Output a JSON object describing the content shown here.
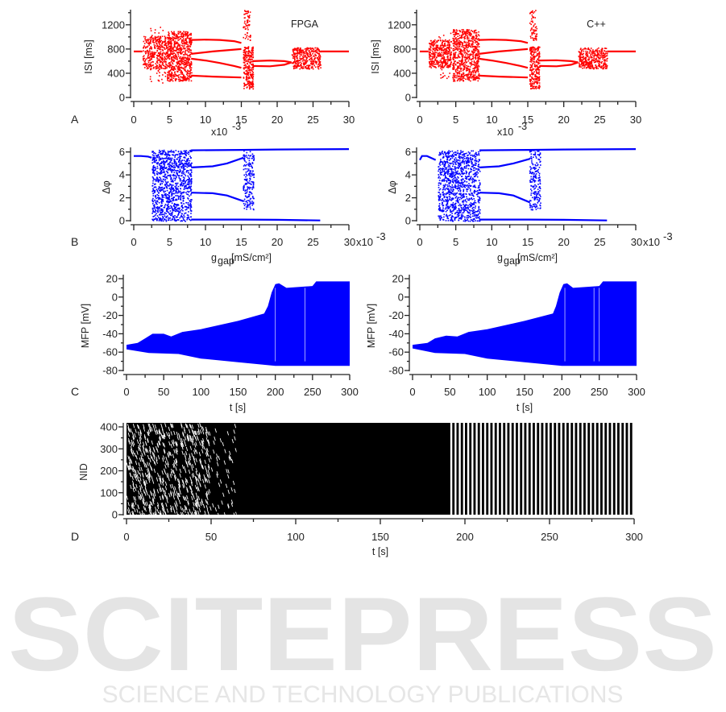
{
  "watermark": {
    "line1": "SCITEPRESS",
    "line2": "SCIENCE AND TECHNOLOGY PUBLICATIONS"
  },
  "chart_data": [
    {
      "id": "A-fpga",
      "panel": "A",
      "type": "scatter",
      "title": "FPGA",
      "color": "#ff0000",
      "ylabel": "ISI [ms]",
      "xlabel_base": "x10",
      "xlabel_exp": "-3",
      "xlim": [
        0,
        30
      ],
      "ylim": [
        0,
        1450
      ],
      "xticks": [
        0,
        5,
        10,
        15,
        20,
        25,
        30
      ],
      "yticks": [
        0,
        400,
        800,
        1200
      ],
      "branches": [
        {
          "x": [
            0,
            1.2
          ],
          "y": [
            760,
            760
          ]
        },
        {
          "x": [
            8,
            10,
            12,
            14,
            15
          ],
          "y": [
            950,
            955,
            950,
            930,
            900
          ]
        },
        {
          "x": [
            8,
            11,
            15
          ],
          "y": [
            720,
            760,
            800
          ]
        },
        {
          "x": [
            8,
            10,
            12,
            14,
            15
          ],
          "y": [
            640,
            610,
            570,
            520,
            490
          ]
        },
        {
          "x": [
            8,
            11,
            15
          ],
          "y": [
            360,
            345,
            330
          ]
        },
        {
          "x": [
            16.6,
            19,
            21,
            22
          ],
          "y": [
            600,
            610,
            600,
            580
          ]
        },
        {
          "x": [
            16.6,
            19,
            21,
            22
          ],
          "y": [
            520,
            515,
            540,
            580
          ]
        },
        {
          "x": [
            26,
            30
          ],
          "y": [
            760,
            760
          ]
        }
      ],
      "chaotic_regions": [
        {
          "x": [
            1.2,
            4.6
          ],
          "y": [
            480,
            1020
          ],
          "density": 350
        },
        {
          "x": [
            2.2,
            4.6
          ],
          "y": [
            250,
            1230
          ],
          "density": 60
        },
        {
          "x": [
            4.6,
            8
          ],
          "y": [
            280,
            1100
          ],
          "density": 700
        },
        {
          "x": [
            15.2,
            16.6
          ],
          "y": [
            150,
            850
          ],
          "density": 250
        },
        {
          "x": [
            15.2,
            16.2
          ],
          "y": [
            950,
            1450
          ],
          "density": 60
        },
        {
          "x": [
            22,
            26
          ],
          "y": [
            480,
            830
          ],
          "density": 350
        }
      ]
    },
    {
      "id": "A-cpp",
      "panel": "",
      "type": "scatter",
      "title": "C++",
      "color": "#ff0000",
      "ylabel": "ISI [ms]",
      "xlabel_base": "x10",
      "xlabel_exp": "-3",
      "xlim": [
        0,
        30
      ],
      "ylim": [
        0,
        1450
      ],
      "xticks": [
        0,
        5,
        10,
        15,
        20,
        25,
        30
      ],
      "yticks": [
        0,
        400,
        800,
        1200
      ],
      "branches": [
        {
          "x": [
            0,
            1.2
          ],
          "y": [
            760,
            760
          ]
        },
        {
          "x": [
            8.2,
            10,
            12,
            14,
            15
          ],
          "y": [
            950,
            955,
            950,
            930,
            900
          ]
        },
        {
          "x": [
            8.2,
            11,
            15
          ],
          "y": [
            720,
            760,
            800
          ]
        },
        {
          "x": [
            8.2,
            10,
            12,
            14,
            15
          ],
          "y": [
            640,
            610,
            570,
            520,
            490
          ]
        },
        {
          "x": [
            8.2,
            11,
            15
          ],
          "y": [
            360,
            345,
            330
          ]
        },
        {
          "x": [
            16.6,
            19,
            21,
            22
          ],
          "y": [
            610,
            615,
            600,
            580
          ]
        },
        {
          "x": [
            16.6,
            19,
            21,
            22
          ],
          "y": [
            520,
            515,
            540,
            580
          ]
        },
        {
          "x": [
            26,
            30
          ],
          "y": [
            760,
            760
          ]
        }
      ],
      "chaotic_regions": [
        {
          "x": [
            1.2,
            4.3
          ],
          "y": [
            500,
            960
          ],
          "density": 350
        },
        {
          "x": [
            2.5,
            4.3
          ],
          "y": [
            320,
            1080
          ],
          "density": 50
        },
        {
          "x": [
            4.5,
            8.2
          ],
          "y": [
            280,
            1130
          ],
          "density": 700
        },
        {
          "x": [
            15.2,
            16.6
          ],
          "y": [
            150,
            850
          ],
          "density": 250
        },
        {
          "x": [
            15.2,
            16.2
          ],
          "y": [
            950,
            1450
          ],
          "density": 60
        },
        {
          "x": [
            22,
            26
          ],
          "y": [
            480,
            830
          ],
          "density": 350
        }
      ]
    },
    {
      "id": "B-fpga",
      "panel": "B",
      "type": "scatter",
      "title": "",
      "color": "#0000ff",
      "ylabel": "Δφ",
      "xlabel_base": "g",
      "xlabel_sub": "gap",
      "xlabel_rest": " [mS/cm²]",
      "tick_suffix_last": "x10",
      "tick_suffix_exp": "-3",
      "xlim": [
        0,
        30
      ],
      "ylim": [
        0,
        6.4
      ],
      "xticks": [
        0,
        5,
        10,
        15,
        20,
        25,
        30
      ],
      "yticks": [
        0,
        2,
        4,
        6
      ],
      "branches": [
        {
          "x": [
            0,
            1,
            2,
            2.5
          ],
          "y": [
            5.65,
            5.65,
            5.6,
            5.5
          ]
        },
        {
          "x": [
            8,
            15,
            20,
            30
          ],
          "y": [
            6.15,
            6.18,
            6.22,
            6.25
          ]
        },
        {
          "x": [
            8,
            11,
            13,
            15.3
          ],
          "y": [
            4.65,
            4.75,
            5.0,
            5.5
          ]
        },
        {
          "x": [
            8,
            11,
            13,
            15.3
          ],
          "y": [
            2.45,
            2.4,
            2.2,
            1.7
          ]
        },
        {
          "x": [
            8,
            15,
            20,
            26
          ],
          "y": [
            0.1,
            0.1,
            0.08,
            0.02
          ]
        }
      ],
      "chaotic_regions": [
        {
          "x": [
            2.5,
            8
          ],
          "y": [
            0,
            6.2
          ],
          "density": 1100
        },
        {
          "x": [
            15.2,
            16.7
          ],
          "y": [
            1.0,
            6.2
          ],
          "density": 200
        }
      ]
    },
    {
      "id": "B-cpp",
      "panel": "",
      "type": "scatter",
      "title": "",
      "color": "#0000ff",
      "ylabel": "Δφ",
      "xlabel_base": "g",
      "xlabel_sub": "gap",
      "xlabel_rest": " [mS/cm²]",
      "tick_suffix_last": "x10",
      "tick_suffix_exp": "-3",
      "xlim": [
        0,
        30
      ],
      "ylim": [
        0,
        6.4
      ],
      "xticks": [
        0,
        5,
        10,
        15,
        20,
        25,
        30
      ],
      "yticks": [
        0,
        2,
        4,
        6
      ],
      "branches": [
        {
          "x": [
            0,
            0.3,
            1,
            2.2
          ],
          "y": [
            5.3,
            5.65,
            5.65,
            5.3
          ]
        },
        {
          "x": [
            8.3,
            15,
            20,
            30
          ],
          "y": [
            6.15,
            6.18,
            6.22,
            6.25
          ]
        },
        {
          "x": [
            8.3,
            11,
            13,
            15.3
          ],
          "y": [
            4.65,
            4.75,
            5.0,
            5.4
          ]
        },
        {
          "x": [
            8.3,
            11,
            13,
            15.3
          ],
          "y": [
            2.45,
            2.4,
            2.2,
            1.6
          ]
        },
        {
          "x": [
            8.3,
            15,
            20,
            26
          ],
          "y": [
            0.1,
            0.1,
            0.08,
            0.02
          ]
        }
      ],
      "chaotic_regions": [
        {
          "x": [
            2.5,
            8.3
          ],
          "y": [
            0,
            6.2
          ],
          "density": 1100
        },
        {
          "x": [
            15.2,
            16.7
          ],
          "y": [
            1.0,
            6.2
          ],
          "density": 200
        }
      ]
    },
    {
      "id": "C-fpga",
      "panel": "C",
      "type": "area",
      "color": "#0000ff",
      "ylabel": "MFP [mV]",
      "xlabel": "t [s]",
      "xlim": [
        0,
        300
      ],
      "ylim": [
        -80,
        20
      ],
      "xticks": [
        0,
        50,
        100,
        150,
        200,
        250,
        300
      ],
      "yticks": [
        -80,
        -60,
        -40,
        -20,
        0,
        20
      ],
      "upper": {
        "t": [
          0,
          15,
          25,
          35,
          50,
          60,
          75,
          100,
          150,
          185,
          190,
          195,
          200,
          205,
          215,
          250,
          255,
          300
        ],
        "v": [
          -52,
          -50,
          -45,
          -40,
          -40,
          -43,
          -38,
          -35,
          -26,
          -18,
          -10,
          5,
          14,
          15,
          10,
          12,
          17,
          17
        ]
      },
      "lower": {
        "t": [
          0,
          30,
          70,
          100,
          150,
          200,
          300
        ],
        "v": [
          -57,
          -61,
          -62,
          -67,
          -71,
          -75,
          -75
        ]
      },
      "gaps_t": [
        200,
        240
      ]
    },
    {
      "id": "C-cpp",
      "panel": "",
      "type": "area",
      "color": "#0000ff",
      "ylabel": "MFP [mV]",
      "xlabel": "t [s]",
      "xlim": [
        0,
        300
      ],
      "ylim": [
        -80,
        20
      ],
      "xticks": [
        0,
        50,
        100,
        150,
        200,
        250,
        300
      ],
      "yticks": [
        -80,
        -60,
        -40,
        -20,
        0,
        20
      ],
      "upper": {
        "t": [
          0,
          20,
          30,
          45,
          60,
          75,
          100,
          150,
          188,
          192,
          197,
          202,
          207,
          215,
          250,
          255,
          300
        ],
        "v": [
          -52,
          -50,
          -45,
          -42,
          -43,
          -38,
          -35,
          -26,
          -18,
          -10,
          5,
          14,
          15,
          10,
          12,
          17,
          17
        ]
      },
      "lower": {
        "t": [
          0,
          30,
          70,
          100,
          150,
          200,
          300
        ],
        "v": [
          -56,
          -61,
          -62,
          -67,
          -71,
          -75,
          -75
        ]
      },
      "gaps_t": [
        204,
        243,
        250
      ]
    },
    {
      "id": "D-raster",
      "panel": "D",
      "type": "raster",
      "color": "#000000",
      "ylabel": "NID",
      "xlabel": "t [s]",
      "xlim": [
        0,
        300
      ],
      "ylim": [
        0,
        400
      ],
      "xticks": [
        0,
        50,
        100,
        150,
        200,
        250,
        300
      ],
      "yticks": [
        0,
        100,
        200,
        300,
        400
      ],
      "regions": [
        {
          "t": [
            0,
            65
          ],
          "pattern": "desynchronized"
        },
        {
          "t": [
            65,
            190
          ],
          "pattern": "dense"
        },
        {
          "t": [
            190,
            300
          ],
          "pattern": "synchronized",
          "period_s": 2.5
        }
      ]
    }
  ]
}
